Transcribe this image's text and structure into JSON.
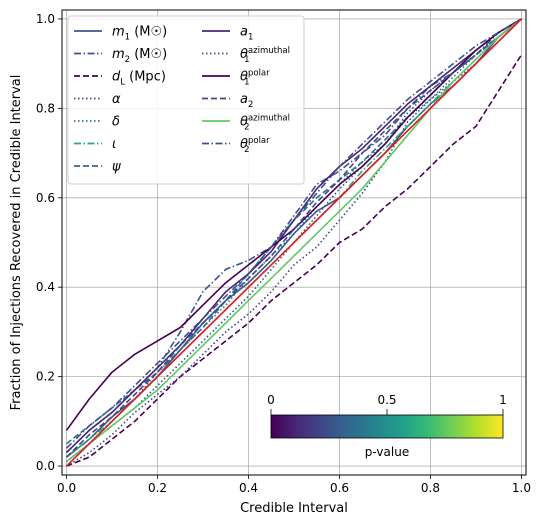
{
  "chart_data": {
    "type": "line",
    "title": "",
    "xlabel": "Credible Interval",
    "ylabel": "Fraction of Injections Recovered in Credible Interval",
    "xlim": [
      -0.01,
      1.01
    ],
    "ylim": [
      -0.02,
      1.02
    ],
    "xticks": [
      "0.0",
      "0.2",
      "0.4",
      "0.6",
      "0.8",
      "1.0"
    ],
    "yticks": [
      "0.0",
      "0.2",
      "0.4",
      "0.6",
      "0.8",
      "1.0"
    ],
    "grid": true,
    "legend_position": "top-left",
    "reference_line": {
      "color": "#e31a1c",
      "x": [
        0,
        1
      ],
      "y": [
        0,
        1
      ]
    },
    "series": [
      {
        "name": "m_1 (M_☉)",
        "color": "#39568c",
        "dash": "solid",
        "x": [
          0,
          0.05,
          0.1,
          0.15,
          0.2,
          0.25,
          0.3,
          0.35,
          0.4,
          0.45,
          0.5,
          0.55,
          0.6,
          0.65,
          0.7,
          0.75,
          0.8,
          0.85,
          0.9,
          0.95,
          1
        ],
        "y": [
          0.02,
          0.06,
          0.11,
          0.15,
          0.2,
          0.26,
          0.32,
          0.37,
          0.41,
          0.46,
          0.52,
          0.57,
          0.6,
          0.65,
          0.7,
          0.76,
          0.81,
          0.85,
          0.9,
          0.96,
          1
        ]
      },
      {
        "name": "m_2 (M_☉)",
        "color": "#3b528b",
        "dash": "dashdot",
        "x": [
          0,
          0.05,
          0.1,
          0.15,
          0.2,
          0.25,
          0.3,
          0.35,
          0.4,
          0.45,
          0.5,
          0.55,
          0.6,
          0.65,
          0.7,
          0.75,
          0.8,
          0.85,
          0.9,
          0.95,
          1
        ],
        "y": [
          0.03,
          0.08,
          0.12,
          0.17,
          0.22,
          0.3,
          0.39,
          0.44,
          0.46,
          0.49,
          0.56,
          0.63,
          0.66,
          0.7,
          0.74,
          0.8,
          0.85,
          0.88,
          0.92,
          0.97,
          1
        ]
      },
      {
        "name": "d_L (Mpc)",
        "color": "#440154",
        "dash": "dashed",
        "x": [
          0,
          0.05,
          0.1,
          0.15,
          0.2,
          0.25,
          0.3,
          0.35,
          0.4,
          0.45,
          0.5,
          0.55,
          0.6,
          0.65,
          0.7,
          0.75,
          0.8,
          0.85,
          0.9,
          0.95,
          1
        ],
        "y": [
          0.0,
          0.02,
          0.06,
          0.1,
          0.15,
          0.2,
          0.24,
          0.28,
          0.32,
          0.37,
          0.41,
          0.45,
          0.5,
          0.53,
          0.58,
          0.62,
          0.67,
          0.72,
          0.76,
          0.84,
          0.92
        ]
      },
      {
        "name": "α",
        "color": "#414487",
        "dash": "dotted",
        "x": [
          0,
          0.05,
          0.1,
          0.15,
          0.2,
          0.25,
          0.3,
          0.35,
          0.4,
          0.45,
          0.5,
          0.55,
          0.6,
          0.65,
          0.7,
          0.75,
          0.8,
          0.85,
          0.9,
          0.95,
          1
        ],
        "y": [
          0.0,
          0.03,
          0.07,
          0.12,
          0.16,
          0.2,
          0.25,
          0.3,
          0.34,
          0.39,
          0.45,
          0.49,
          0.55,
          0.61,
          0.68,
          0.77,
          0.82,
          0.86,
          0.9,
          0.95,
          1
        ]
      },
      {
        "name": "δ",
        "color": "#2a788e",
        "dash": "dotted",
        "x": [
          0,
          0.05,
          0.1,
          0.15,
          0.2,
          0.25,
          0.3,
          0.35,
          0.4,
          0.45,
          0.5,
          0.55,
          0.6,
          0.65,
          0.7,
          0.75,
          0.8,
          0.85,
          0.9,
          0.95,
          1
        ],
        "y": [
          0.01,
          0.05,
          0.1,
          0.15,
          0.21,
          0.26,
          0.31,
          0.36,
          0.42,
          0.47,
          0.52,
          0.58,
          0.63,
          0.68,
          0.72,
          0.78,
          0.82,
          0.87,
          0.92,
          0.96,
          1
        ]
      },
      {
        "name": "ι",
        "color": "#22a884",
        "dash": "dashdot",
        "x": [
          0,
          0.05,
          0.1,
          0.15,
          0.2,
          0.25,
          0.3,
          0.35,
          0.4,
          0.45,
          0.5,
          0.55,
          0.6,
          0.65,
          0.7,
          0.75,
          0.8,
          0.85,
          0.9,
          0.95,
          1
        ],
        "y": [
          0.02,
          0.06,
          0.1,
          0.15,
          0.2,
          0.25,
          0.3,
          0.35,
          0.4,
          0.45,
          0.5,
          0.55,
          0.6,
          0.66,
          0.71,
          0.76,
          0.81,
          0.86,
          0.91,
          0.96,
          1
        ]
      },
      {
        "name": "ψ",
        "color": "#31688e",
        "dash": "dashed",
        "x": [
          0,
          0.05,
          0.1,
          0.15,
          0.2,
          0.25,
          0.3,
          0.35,
          0.4,
          0.45,
          0.5,
          0.55,
          0.6,
          0.65,
          0.7,
          0.75,
          0.8,
          0.85,
          0.9,
          0.95,
          1
        ],
        "y": [
          0.05,
          0.09,
          0.13,
          0.17,
          0.21,
          0.26,
          0.31,
          0.37,
          0.43,
          0.49,
          0.55,
          0.6,
          0.64,
          0.68,
          0.73,
          0.78,
          0.83,
          0.88,
          0.92,
          0.96,
          1
        ]
      },
      {
        "name": "a_1",
        "color": "#482677",
        "dash": "solid",
        "x": [
          0,
          0.05,
          0.1,
          0.15,
          0.2,
          0.25,
          0.3,
          0.35,
          0.4,
          0.45,
          0.5,
          0.55,
          0.6,
          0.65,
          0.7,
          0.75,
          0.8,
          0.85,
          0.9,
          0.95,
          1
        ],
        "y": [
          0.03,
          0.08,
          0.12,
          0.17,
          0.22,
          0.27,
          0.33,
          0.39,
          0.43,
          0.48,
          0.55,
          0.62,
          0.67,
          0.71,
          0.76,
          0.81,
          0.85,
          0.89,
          0.93,
          0.97,
          1
        ]
      },
      {
        "name": "θ_1^azimuthal",
        "color": "#3b528b",
        "dash": "dotted",
        "x": [
          0,
          0.05,
          0.1,
          0.15,
          0.2,
          0.25,
          0.3,
          0.35,
          0.4,
          0.45,
          0.5,
          0.55,
          0.6,
          0.65,
          0.7,
          0.75,
          0.8,
          0.85,
          0.9,
          0.95,
          1
        ],
        "y": [
          0.01,
          0.05,
          0.09,
          0.13,
          0.18,
          0.23,
          0.28,
          0.33,
          0.38,
          0.44,
          0.5,
          0.56,
          0.62,
          0.67,
          0.72,
          0.79,
          0.84,
          0.88,
          0.92,
          0.96,
          1
        ]
      },
      {
        "name": "θ_1^polar",
        "color": "#440154",
        "dash": "solid",
        "x": [
          0,
          0.05,
          0.1,
          0.15,
          0.2,
          0.25,
          0.3,
          0.35,
          0.4,
          0.45,
          0.5,
          0.55,
          0.6,
          0.65,
          0.7,
          0.75,
          0.8,
          0.85,
          0.9,
          0.95,
          1
        ],
        "y": [
          0.08,
          0.15,
          0.21,
          0.25,
          0.28,
          0.31,
          0.36,
          0.41,
          0.45,
          0.49,
          0.53,
          0.58,
          0.63,
          0.67,
          0.72,
          0.78,
          0.83,
          0.88,
          0.93,
          0.97,
          1
        ]
      },
      {
        "name": "a_2",
        "color": "#3e4a89",
        "dash": "dashed",
        "x": [
          0,
          0.05,
          0.1,
          0.15,
          0.2,
          0.25,
          0.3,
          0.35,
          0.4,
          0.45,
          0.5,
          0.55,
          0.6,
          0.65,
          0.7,
          0.75,
          0.8,
          0.85,
          0.9,
          0.95,
          1
        ],
        "y": [
          0.02,
          0.07,
          0.11,
          0.16,
          0.21,
          0.27,
          0.32,
          0.37,
          0.42,
          0.47,
          0.53,
          0.59,
          0.64,
          0.7,
          0.75,
          0.8,
          0.84,
          0.88,
          0.92,
          0.96,
          1
        ]
      },
      {
        "name": "θ_2^azimuthal",
        "color": "#5ec962",
        "dash": "solid",
        "x": [
          0,
          0.05,
          0.1,
          0.15,
          0.2,
          0.25,
          0.3,
          0.35,
          0.4,
          0.45,
          0.5,
          0.55,
          0.6,
          0.65,
          0.7,
          0.75,
          0.8,
          0.85,
          0.9,
          0.95,
          1
        ],
        "y": [
          0.01,
          0.05,
          0.09,
          0.13,
          0.17,
          0.22,
          0.27,
          0.32,
          0.37,
          0.42,
          0.47,
          0.52,
          0.57,
          0.62,
          0.68,
          0.74,
          0.8,
          0.86,
          0.91,
          0.96,
          1
        ]
      },
      {
        "name": "θ_2^polar",
        "color": "#3b528b",
        "dash": "dashdot",
        "x": [
          0,
          0.05,
          0.1,
          0.15,
          0.2,
          0.25,
          0.3,
          0.35,
          0.4,
          0.45,
          0.5,
          0.55,
          0.6,
          0.65,
          0.7,
          0.75,
          0.8,
          0.85,
          0.9,
          0.95,
          1
        ],
        "y": [
          0.04,
          0.09,
          0.13,
          0.18,
          0.23,
          0.28,
          0.33,
          0.38,
          0.43,
          0.49,
          0.55,
          0.61,
          0.67,
          0.72,
          0.77,
          0.82,
          0.86,
          0.9,
          0.94,
          0.97,
          1
        ]
      }
    ],
    "colorbar": {
      "label": "p-value",
      "ticks": [
        "0",
        "0.5",
        "1"
      ],
      "colormap": "viridis",
      "stops": [
        "#440154",
        "#482878",
        "#3e4989",
        "#31688e",
        "#26828e",
        "#1f9e89",
        "#35b779",
        "#6ece58",
        "#b5de2b",
        "#fde725"
      ]
    }
  }
}
